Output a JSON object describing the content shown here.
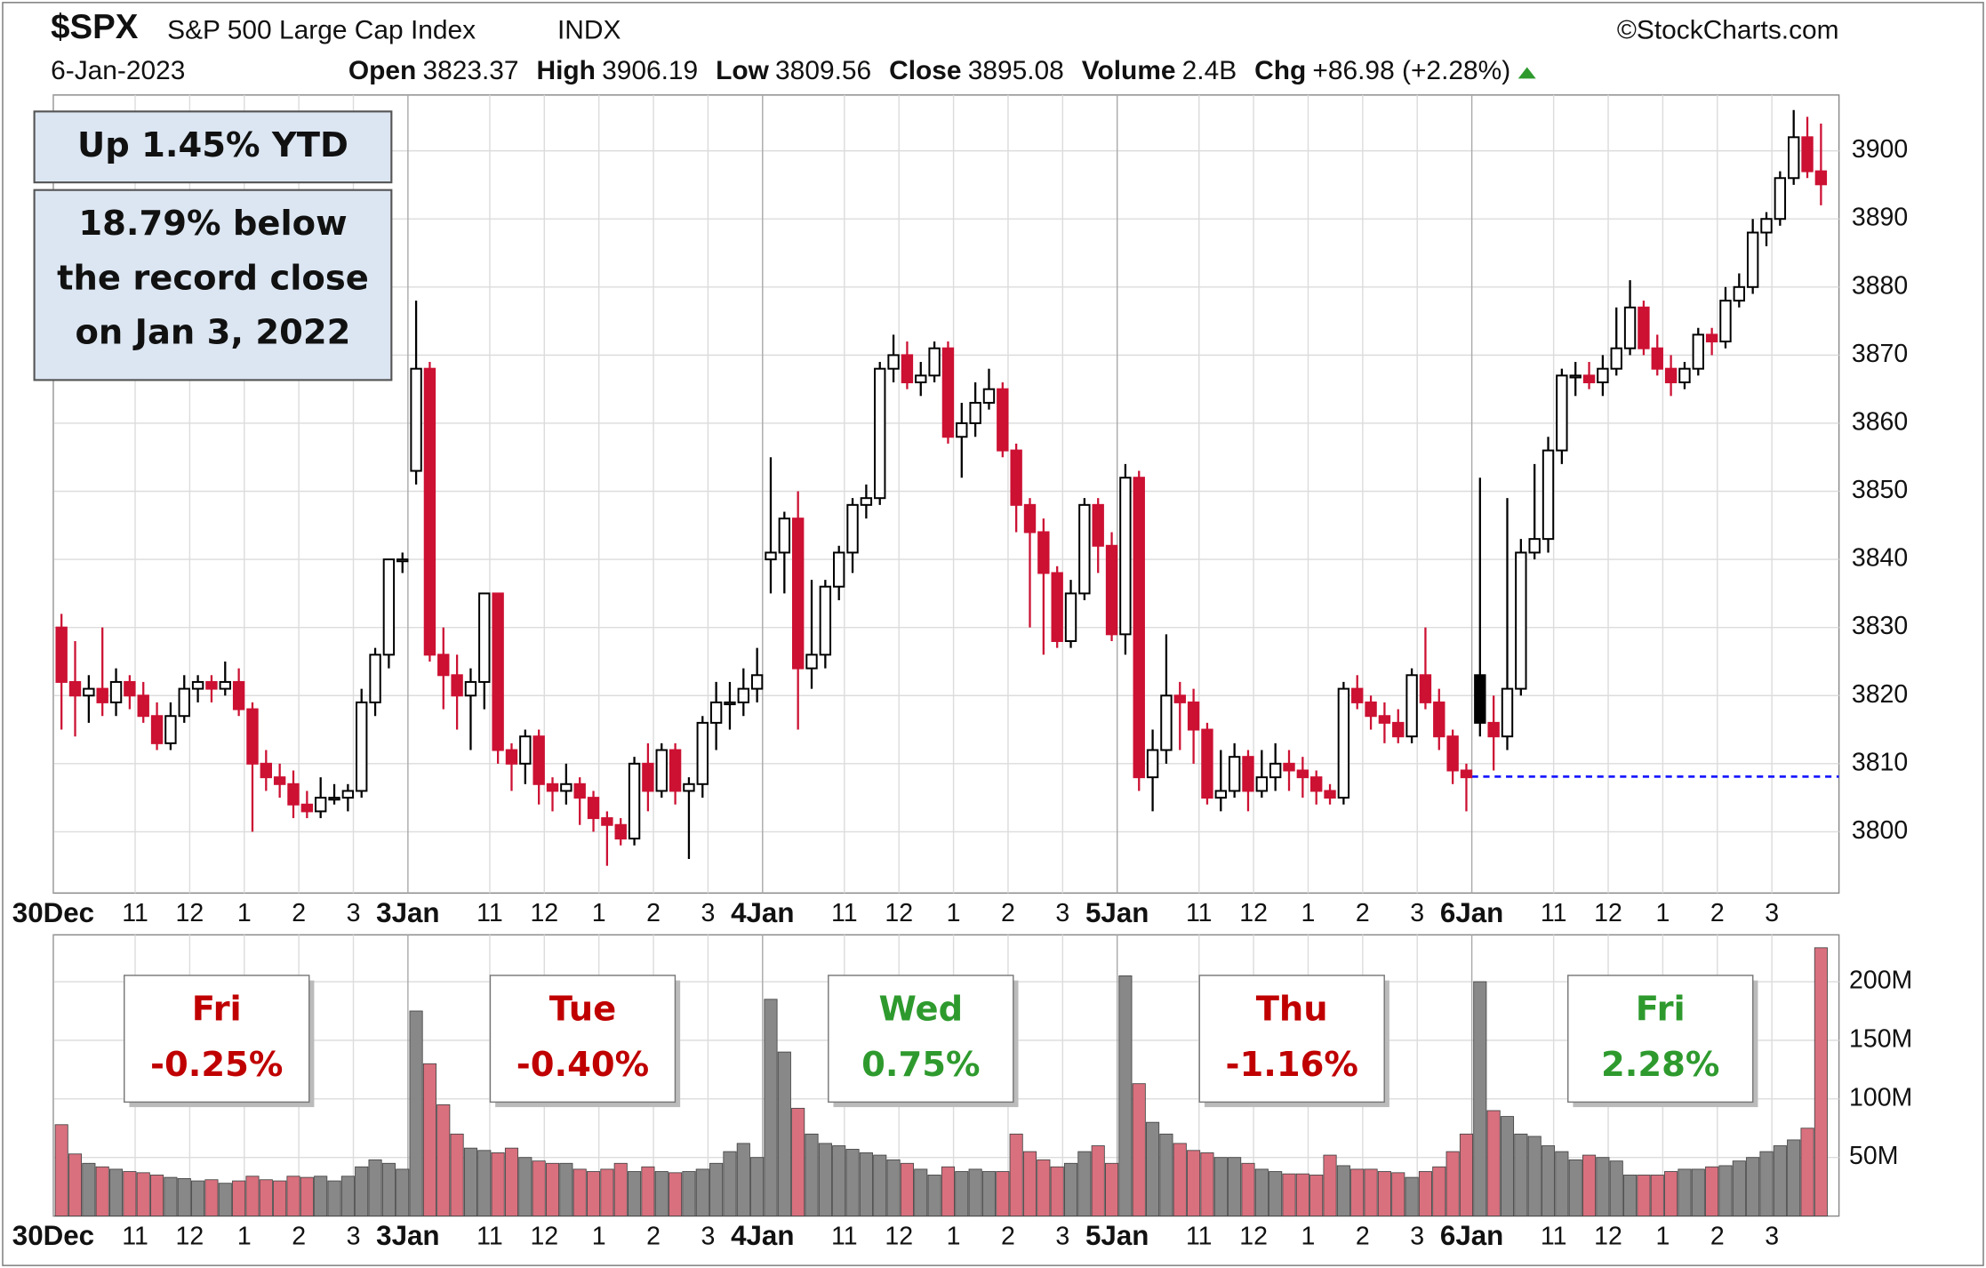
{
  "chart_data": {
    "type": "candlestick",
    "header": {
      "symbol": "$SPX",
      "name": "S&P 500 Large Cap Index",
      "exchange": "INDX",
      "date": "6-Jan-2023",
      "source": "©StockCharts.com",
      "fields": [
        {
          "label": "Open",
          "value": 3823.37
        },
        {
          "label": "High",
          "value": 3906.19
        },
        {
          "label": "Low",
          "value": 3809.56
        },
        {
          "label": "Close",
          "value": 3895.08
        },
        {
          "label": "Volume",
          "value": "2.4B"
        },
        {
          "label": "Chg",
          "value": "+86.98 (+2.28%)"
        }
      ]
    },
    "up_color": "#000000",
    "down_color": "#cc1133",
    "volume_up_color": "#888888",
    "volume_down_color": "#d9707e",
    "ylim": [
      3791,
      3908.2
    ],
    "yticks": [
      3800,
      3810,
      3820,
      3830,
      3840,
      3850,
      3860,
      3870,
      3880,
      3890,
      3900
    ],
    "volume_ylim": [
      0,
      240
    ],
    "volume_ticks": [
      {
        "value": 50,
        "label": "50M"
      },
      {
        "value": 100,
        "label": "100M"
      },
      {
        "value": 150,
        "label": "150M"
      },
      {
        "value": 200,
        "label": "200M"
      }
    ],
    "xticks": [
      {
        "value": 0,
        "label": "30Dec"
      },
      {
        "value": 6,
        "label": "11"
      },
      {
        "value": 10,
        "label": "12"
      },
      {
        "value": 14,
        "label": "1"
      },
      {
        "value": 18,
        "label": "2"
      },
      {
        "value": 22,
        "label": "3"
      },
      {
        "value": 26,
        "label": "3Jan"
      },
      {
        "value": 32,
        "label": "11"
      },
      {
        "value": 36,
        "label": "12"
      },
      {
        "value": 40,
        "label": "1"
      },
      {
        "value": 44,
        "label": "2"
      },
      {
        "value": 48,
        "label": "3"
      },
      {
        "value": 52,
        "label": "4Jan"
      },
      {
        "value": 58,
        "label": "11"
      },
      {
        "value": 62,
        "label": "12"
      },
      {
        "value": 66,
        "label": "1"
      },
      {
        "value": 70,
        "label": "2"
      },
      {
        "value": 74,
        "label": "3"
      },
      {
        "value": 78,
        "label": "5Jan"
      },
      {
        "value": 84,
        "label": "11"
      },
      {
        "value": 88,
        "label": "12"
      },
      {
        "value": 92,
        "label": "1"
      },
      {
        "value": 96,
        "label": "2"
      },
      {
        "value": 100,
        "label": "3"
      },
      {
        "value": 104,
        "label": "6Jan"
      },
      {
        "value": 110,
        "label": "11"
      },
      {
        "value": 114,
        "label": "12"
      },
      {
        "value": 118,
        "label": "1"
      },
      {
        "value": 122,
        "label": "2"
      },
      {
        "value": 126,
        "label": "3"
      }
    ],
    "reference_line": {
      "value": 3808.1,
      "color": "#1a1aff",
      "from": 104
    },
    "candles": [
      [
        3830,
        3832,
        3815,
        3822
      ],
      [
        3822,
        3828,
        3814,
        3820
      ],
      [
        3820,
        3823,
        3816,
        3821
      ],
      [
        3821,
        3830,
        3817,
        3819
      ],
      [
        3819,
        3824,
        3817,
        3822
      ],
      [
        3822,
        3823,
        3818,
        3820
      ],
      [
        3820,
        3822,
        3816,
        3817
      ],
      [
        3817,
        3819,
        3812,
        3813
      ],
      [
        3813,
        3819,
        3812,
        3817
      ],
      [
        3817,
        3823,
        3816,
        3821
      ],
      [
        3821,
        3823,
        3819,
        3822
      ],
      [
        3822,
        3823,
        3819,
        3821
      ],
      [
        3821,
        3825,
        3820,
        3822
      ],
      [
        3822,
        3824,
        3817,
        3818
      ],
      [
        3818,
        3819,
        3800,
        3810
      ],
      [
        3810,
        3812,
        3806,
        3808
      ],
      [
        3808,
        3810,
        3805,
        3807
      ],
      [
        3807,
        3809,
        3802,
        3804
      ],
      [
        3804,
        3806,
        3802,
        3803
      ],
      [
        3803,
        3808,
        3802,
        3805
      ],
      [
        3805,
        3807,
        3804,
        3805
      ],
      [
        3805,
        3807,
        3803,
        3806
      ],
      [
        3806,
        3821,
        3805,
        3819
      ],
      [
        3819,
        3827,
        3817,
        3826
      ],
      [
        3826,
        3840,
        3824,
        3840
      ],
      [
        3840,
        3841,
        3838,
        3840
      ],
      [
        3853,
        3878,
        3851,
        3868
      ],
      [
        3868,
        3869,
        3825,
        3826
      ],
      [
        3826,
        3830,
        3818,
        3823
      ],
      [
        3823,
        3826,
        3815,
        3820
      ],
      [
        3820,
        3824,
        3812,
        3822
      ],
      [
        3822,
        3835,
        3818,
        3835
      ],
      [
        3835,
        3835,
        3810,
        3812
      ],
      [
        3812,
        3813,
        3806,
        3810
      ],
      [
        3810,
        3815,
        3807,
        3814
      ],
      [
        3814,
        3815,
        3804,
        3807
      ],
      [
        3807,
        3808,
        3803,
        3806
      ],
      [
        3806,
        3810,
        3804,
        3807
      ],
      [
        3807,
        3808,
        3801,
        3805
      ],
      [
        3805,
        3806,
        3800,
        3802
      ],
      [
        3802,
        3803,
        3795,
        3801
      ],
      [
        3801,
        3802,
        3798,
        3799
      ],
      [
        3799,
        3811,
        3798,
        3810
      ],
      [
        3810,
        3813,
        3803,
        3806
      ],
      [
        3806,
        3813,
        3805,
        3812
      ],
      [
        3812,
        3813,
        3804,
        3806
      ],
      [
        3806,
        3808,
        3796,
        3807
      ],
      [
        3807,
        3817,
        3805,
        3816
      ],
      [
        3816,
        3822,
        3812,
        3819
      ],
      [
        3819,
        3822,
        3815,
        3819
      ],
      [
        3819,
        3824,
        3817,
        3821
      ],
      [
        3821,
        3827,
        3819,
        3823
      ],
      [
        3840,
        3855,
        3835,
        3841
      ],
      [
        3841,
        3847,
        3835,
        3846
      ],
      [
        3846,
        3850,
        3815,
        3824
      ],
      [
        3824,
        3837,
        3821,
        3826
      ],
      [
        3826,
        3837,
        3824,
        3836
      ],
      [
        3836,
        3842,
        3834,
        3841
      ],
      [
        3841,
        3849,
        3838,
        3848
      ],
      [
        3848,
        3851,
        3846,
        3849
      ],
      [
        3849,
        3869,
        3848,
        3868
      ],
      [
        3868,
        3873,
        3866,
        3870
      ],
      [
        3870,
        3872,
        3865,
        3866
      ],
      [
        3866,
        3869,
        3864,
        3867
      ],
      [
        3867,
        3872,
        3866,
        3871
      ],
      [
        3871,
        3872,
        3857,
        3858
      ],
      [
        3858,
        3863,
        3852,
        3860
      ],
      [
        3860,
        3866,
        3858,
        3863
      ],
      [
        3863,
        3868,
        3862,
        3865
      ],
      [
        3865,
        3866,
        3855,
        3856
      ],
      [
        3856,
        3857,
        3844,
        3848
      ],
      [
        3848,
        3849,
        3830,
        3844
      ],
      [
        3844,
        3846,
        3826,
        3838
      ],
      [
        3838,
        3839,
        3827,
        3828
      ],
      [
        3828,
        3837,
        3827,
        3835
      ],
      [
        3835,
        3849,
        3834,
        3848
      ],
      [
        3848,
        3849,
        3838,
        3842
      ],
      [
        3842,
        3844,
        3828,
        3829
      ],
      [
        3829,
        3854,
        3826,
        3852
      ],
      [
        3852,
        3853,
        3806,
        3808
      ],
      [
        3808,
        3815,
        3803,
        3812
      ],
      [
        3812,
        3829,
        3810,
        3820
      ],
      [
        3820,
        3822,
        3812,
        3819
      ],
      [
        3819,
        3821,
        3810,
        3815
      ],
      [
        3815,
        3816,
        3804,
        3805
      ],
      [
        3805,
        3812,
        3803,
        3806
      ],
      [
        3806,
        3813,
        3805,
        3811
      ],
      [
        3811,
        3812,
        3803,
        3806
      ],
      [
        3806,
        3812,
        3805,
        3808
      ],
      [
        3808,
        3813,
        3806,
        3810
      ],
      [
        3810,
        3812,
        3806,
        3809
      ],
      [
        3809,
        3811,
        3805,
        3808
      ],
      [
        3808,
        3809,
        3804,
        3806
      ],
      [
        3806,
        3807,
        3804,
        3805
      ],
      [
        3805,
        3822,
        3804,
        3821
      ],
      [
        3821,
        3823,
        3818,
        3819
      ],
      [
        3819,
        3820,
        3815,
        3817
      ],
      [
        3817,
        3819,
        3813,
        3816
      ],
      [
        3816,
        3818,
        3813,
        3814
      ],
      [
        3814,
        3824,
        3813,
        3823
      ],
      [
        3823,
        3830,
        3818,
        3819
      ],
      [
        3819,
        3821,
        3812,
        3814
      ],
      [
        3814,
        3815,
        3807,
        3809
      ],
      [
        3809,
        3810,
        3803,
        3808
      ],
      [
        3823,
        3852,
        3814,
        3816
      ],
      [
        3816,
        3820,
        3809,
        3814
      ],
      [
        3814,
        3849,
        3812,
        3821
      ],
      [
        3821,
        3843,
        3820,
        3841
      ],
      [
        3841,
        3854,
        3840,
        3843
      ],
      [
        3843,
        3858,
        3841,
        3856
      ],
      [
        3856,
        3868,
        3854,
        3867
      ],
      [
        3867,
        3869,
        3864,
        3867
      ],
      [
        3867,
        3869,
        3865,
        3866
      ],
      [
        3866,
        3870,
        3864,
        3868
      ],
      [
        3868,
        3877,
        3867,
        3871
      ],
      [
        3871,
        3881,
        3870,
        3877
      ],
      [
        3877,
        3878,
        3870,
        3871
      ],
      [
        3871,
        3873,
        3867,
        3868
      ],
      [
        3868,
        3870,
        3864,
        3866
      ],
      [
        3866,
        3869,
        3865,
        3868
      ],
      [
        3868,
        3874,
        3867,
        3873
      ],
      [
        3873,
        3874,
        3870,
        3872
      ],
      [
        3872,
        3880,
        3871,
        3878
      ],
      [
        3878,
        3882,
        3877,
        3880
      ],
      [
        3880,
        3890,
        3879,
        3888
      ],
      [
        3888,
        3891,
        3886,
        3890
      ],
      [
        3890,
        3897,
        3889,
        3896
      ],
      [
        3896,
        3906,
        3895,
        3902
      ],
      [
        3902,
        3905,
        3896,
        3897
      ],
      [
        3897,
        3904,
        3892,
        3895.08
      ]
    ],
    "volume": [
      78,
      53,
      45,
      42,
      40,
      38,
      37,
      35,
      33,
      32,
      30,
      31,
      28,
      30,
      34,
      31,
      30,
      34,
      33,
      34,
      30,
      34,
      42,
      48,
      45,
      40,
      175,
      130,
      95,
      70,
      58,
      56,
      54,
      58,
      50,
      47,
      45,
      45,
      40,
      38,
      40,
      45,
      38,
      42,
      38,
      37,
      38,
      40,
      45,
      55,
      62,
      50,
      185,
      140,
      92,
      70,
      62,
      60,
      57,
      54,
      52,
      48,
      45,
      40,
      35,
      42,
      38,
      40,
      38,
      38,
      70,
      55,
      48,
      42,
      45,
      55,
      60,
      45,
      205,
      113,
      80,
      70,
      62,
      56,
      54,
      50,
      50,
      45,
      40,
      38,
      36,
      36,
      35,
      52,
      43,
      40,
      40,
      38,
      37,
      33,
      38,
      42,
      55,
      70,
      200,
      90,
      85,
      70,
      68,
      60,
      55,
      48,
      52,
      50,
      47,
      35,
      35,
      35,
      38,
      40,
      40,
      42,
      43,
      47,
      50,
      55,
      60,
      65,
      75,
      229
    ],
    "notes": [
      {
        "lines": [
          "Up 1.45% YTD"
        ]
      },
      {
        "lines": [
          "18.79% below",
          "the record close",
          "on Jan 3, 2022"
        ]
      }
    ],
    "day_boxes": [
      {
        "day": "Fri",
        "change": "-0.25%",
        "color": "#c00000"
      },
      {
        "day": "Tue",
        "change": "-0.40%",
        "color": "#c00000"
      },
      {
        "day": "Wed",
        "change": "0.75%",
        "color": "#2e9a2e"
      },
      {
        "day": "Thu",
        "change": "-1.16%",
        "color": "#c00000"
      },
      {
        "day": "Fri",
        "change": "2.28%",
        "color": "#2e9a2e"
      }
    ]
  }
}
